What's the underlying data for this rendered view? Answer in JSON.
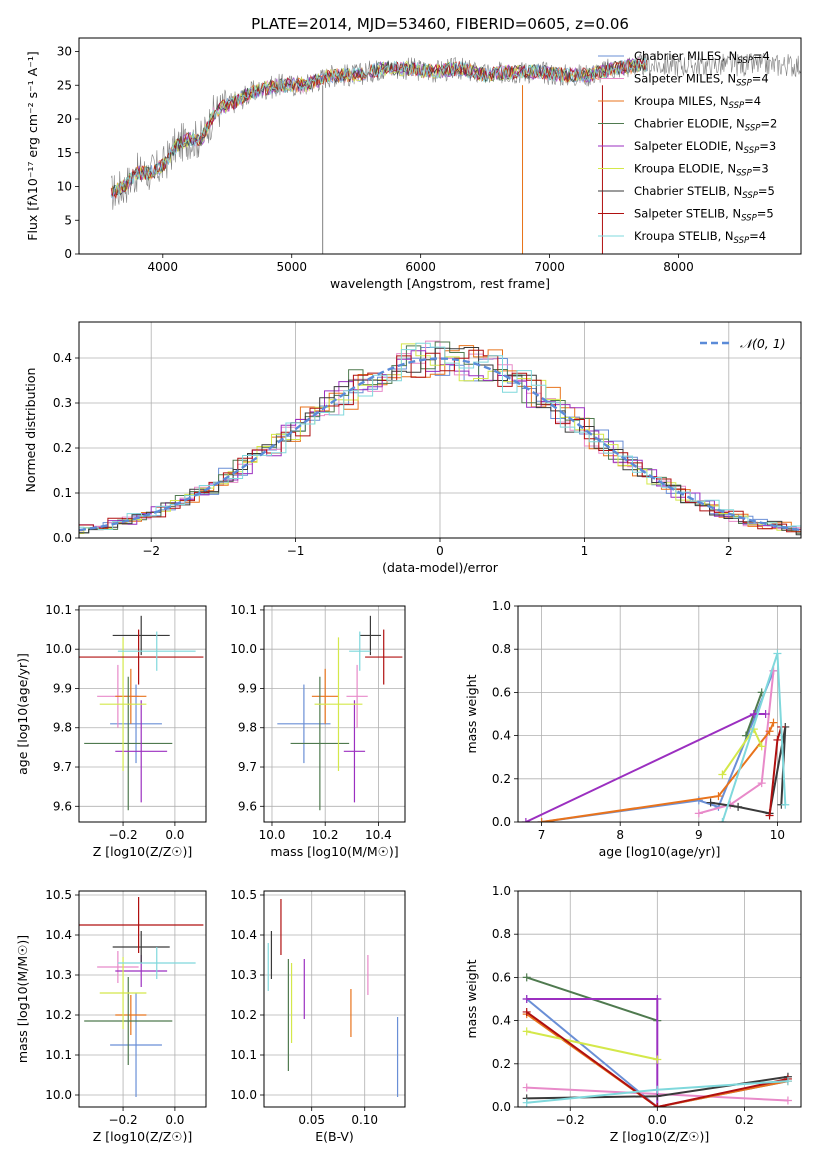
{
  "title": "PLATE=2014, MJD=53460, FIBERID=0605, z=0.06",
  "colors": {
    "Chabrier MILES": "#6a8fd6",
    "Salpeter MILES": "#e88ac9",
    "Kroupa MILES": "#e8731c",
    "Chabrier ELODIE": "#4f7a4f",
    "Salpeter ELODIE": "#9b2fc0",
    "Kroupa ELODIE": "#d4e84a",
    "Chabrier STELIB": "#3a3a3a",
    "Salpeter STELIB": "#b01010",
    "Kroupa STELIB": "#7fd8dc",
    "data": "#808080",
    "gaussian": "#5b8bd8"
  },
  "chart_data": [
    {
      "id": "spectrum",
      "type": "line",
      "xlabel": "wavelength [Angstrom, rest frame]",
      "ylabel": "Flux [fλ10⁻¹⁷ erg cm⁻² s⁻¹ A⁻¹]",
      "xlim": [
        3350,
        8950
      ],
      "ylim": [
        0,
        32
      ],
      "xticks": [
        4000,
        5000,
        6000,
        7000,
        8000
      ],
      "yticks": [
        0,
        5,
        10,
        15,
        20,
        25,
        30
      ],
      "legend_position": "top-right",
      "continuum": {
        "x": [
          3600,
          3700,
          3800,
          3900,
          4000,
          4100,
          4200,
          4300,
          4400,
          4500,
          4700,
          4900,
          5100,
          5300,
          5500,
          5700,
          5900,
          6100,
          6300,
          6500,
          6700,
          6900,
          7100,
          7300,
          7500,
          7700
        ],
        "y": [
          9,
          10,
          12,
          12,
          13,
          16,
          17,
          17,
          21,
          22,
          24,
          25,
          25,
          26.5,
          26.5,
          27.5,
          27.5,
          27,
          27.5,
          26.5,
          27,
          27,
          26.5,
          26.5,
          27.5,
          28
        ]
      },
      "series": [
        {
          "name": "Chabrier MILES, N_SSP=4"
        },
        {
          "name": "Salpeter MILES, N_SSP=4"
        },
        {
          "name": "Kroupa MILES, N_SSP=4"
        },
        {
          "name": "Chabrier ELODIE, N_SSP=2"
        },
        {
          "name": "Salpeter ELODIE, N_SSP=3"
        },
        {
          "name": "Kroupa ELODIE, N_SSP=3"
        },
        {
          "name": "Chabrier STELIB, N_SSP=5"
        },
        {
          "name": "Salpeter STELIB, N_SSP=5"
        },
        {
          "name": "Kroupa STELIB, N_SSP=4"
        }
      ],
      "legend_labels": [
        "Chabrier MILES, N",
        "Salpeter MILES, N",
        "Kroupa MILES, N",
        "Chabrier ELODIE, N",
        "Salpeter ELODIE, N",
        "Kroupa ELODIE, N",
        "Chabrier STELIB, N",
        "Salpeter STELIB, N",
        "Kroupa STELIB, N"
      ],
      "legend_sub": "SSP",
      "legend_values": [
        "=4",
        "=4",
        "=4",
        "=2",
        "=3",
        "=3",
        "=5",
        "=5",
        "=4"
      ]
    },
    {
      "id": "residuals",
      "type": "histogram",
      "xlabel": "(data-model)/error",
      "ylabel": "Normed distribution",
      "xlim": [
        -2.5,
        2.5
      ],
      "ylim": [
        0,
        0.48
      ],
      "xticks": [
        -2,
        -1,
        0,
        1,
        2
      ],
      "yticks": [
        0.0,
        0.1,
        0.2,
        0.3,
        0.4
      ],
      "grid": true,
      "legend": "𝒩(0, 1)",
      "legend_position": "top-right",
      "bin_width": 0.1
    },
    {
      "id": "age-vs-Z",
      "type": "errorbar",
      "xlabel": "Z [log10(Z/Z☉)]",
      "ylabel": "age  [log10(age/yr)]",
      "xlim": [
        -0.37,
        0.12
      ],
      "ylim": [
        9.56,
        10.11
      ],
      "xticks": [
        -0.2,
        0.0
      ],
      "yticks": [
        9.6,
        9.7,
        9.8,
        9.9,
        10.0,
        10.1
      ],
      "grid": true,
      "points": [
        {
          "model": "Chabrier MILES",
          "x": -0.15,
          "y": 9.81,
          "xerr": 0.1,
          "yerr": 0.1
        },
        {
          "model": "Salpeter MILES",
          "x": -0.22,
          "y": 9.88,
          "xerr": 0.08,
          "yerr": 0.08
        },
        {
          "model": "Kroupa MILES",
          "x": -0.17,
          "y": 9.88,
          "xerr": 0.06,
          "yerr": 0.07
        },
        {
          "model": "Chabrier ELODIE",
          "x": -0.18,
          "y": 9.76,
          "xerr": 0.17,
          "yerr": 0.17
        },
        {
          "model": "Salpeter ELODIE",
          "x": -0.13,
          "y": 9.74,
          "xerr": 0.1,
          "yerr": 0.13
        },
        {
          "model": "Kroupa ELODIE",
          "x": -0.2,
          "y": 9.86,
          "xerr": 0.09,
          "yerr": 0.17
        },
        {
          "model": "Chabrier STELIB",
          "x": -0.13,
          "y": 10.035,
          "xerr": 0.11,
          "yerr": 0.05
        },
        {
          "model": "Salpeter STELIB",
          "x": -0.14,
          "y": 9.98,
          "xerr": 0.25,
          "yerr": 0.07
        },
        {
          "model": "Kroupa STELIB",
          "x": -0.07,
          "y": 9.995,
          "xerr": 0.15,
          "yerr": 0.05
        }
      ]
    },
    {
      "id": "age-vs-mass",
      "type": "errorbar",
      "xlabel": "mass [log10(M/M☉)]",
      "ylabel": "",
      "xlim": [
        9.97,
        10.5
      ],
      "ylim": [
        9.56,
        10.11
      ],
      "xticks": [
        10.0,
        10.2,
        10.4
      ],
      "yticks": [
        9.6,
        9.7,
        9.8,
        9.9,
        10.0,
        10.1
      ],
      "grid": true,
      "points": [
        {
          "model": "Chabrier MILES",
          "x": 10.12,
          "y": 9.81,
          "xerr": 0.1,
          "yerr": 0.1
        },
        {
          "model": "Salpeter MILES",
          "x": 10.32,
          "y": 9.88,
          "xerr": 0.04,
          "yerr": 0.08
        },
        {
          "model": "Kroupa MILES",
          "x": 10.2,
          "y": 9.88,
          "xerr": 0.05,
          "yerr": 0.07
        },
        {
          "model": "Chabrier ELODIE",
          "x": 10.18,
          "y": 9.76,
          "xerr": 0.11,
          "yerr": 0.17
        },
        {
          "model": "Salpeter ELODIE",
          "x": 10.31,
          "y": 9.74,
          "xerr": 0.04,
          "yerr": 0.13
        },
        {
          "model": "Kroupa ELODIE",
          "x": 10.25,
          "y": 9.86,
          "xerr": 0.09,
          "yerr": 0.17
        },
        {
          "model": "Chabrier STELIB",
          "x": 10.37,
          "y": 10.035,
          "xerr": 0.04,
          "yerr": 0.05
        },
        {
          "model": "Salpeter STELIB",
          "x": 10.42,
          "y": 9.98,
          "xerr": 0.07,
          "yerr": 0.07
        },
        {
          "model": "Kroupa STELIB",
          "x": 10.33,
          "y": 9.995,
          "xerr": 0.04,
          "yerr": 0.05
        }
      ]
    },
    {
      "id": "mass-weight-vs-age",
      "type": "line",
      "xlabel": "age  [log10(age/yr)]",
      "ylabel": "mass weight",
      "xlim": [
        6.7,
        10.3
      ],
      "ylim": [
        0,
        1
      ],
      "xticks": [
        7,
        8,
        9,
        10
      ],
      "yticks": [
        0.0,
        0.2,
        0.4,
        0.6,
        0.8,
        1.0
      ],
      "grid": true,
      "series": [
        {
          "model": "Chabrier MILES",
          "x": [
            7.0,
            9.0,
            9.25,
            9.95
          ],
          "y": [
            0.0,
            0.1,
            0.07,
            0.7
          ]
        },
        {
          "model": "Salpeter MILES",
          "x": [
            9.0,
            9.4,
            9.8,
            9.95
          ],
          "y": [
            0.04,
            0.08,
            0.18,
            0.7
          ]
        },
        {
          "model": "Kroupa MILES",
          "x": [
            7.0,
            9.25,
            9.9,
            9.95
          ],
          "y": [
            0.0,
            0.12,
            0.42,
            0.46
          ]
        },
        {
          "model": "Chabrier ELODIE",
          "x": [
            9.6,
            9.8
          ],
          "y": [
            0.4,
            0.6
          ]
        },
        {
          "model": "Salpeter ELODIE",
          "x": [
            6.8,
            9.7,
            9.85
          ],
          "y": [
            0.0,
            0.5,
            0.5
          ]
        },
        {
          "model": "Kroupa ELODIE",
          "x": [
            9.3,
            9.7,
            9.8
          ],
          "y": [
            0.22,
            0.43,
            0.35
          ]
        },
        {
          "model": "Chabrier STELIB",
          "x": [
            9.15,
            9.5,
            9.9,
            10.1,
            10.05
          ],
          "y": [
            0.09,
            0.07,
            0.04,
            0.44,
            0.08
          ]
        },
        {
          "model": "Salpeter STELIB",
          "x": [
            9.9,
            10.0,
            10.05
          ],
          "y": [
            0.03,
            0.38,
            0.44
          ]
        },
        {
          "model": "Kroupa STELIB",
          "x": [
            9.3,
            10.0,
            10.1
          ],
          "y": [
            0.0,
            0.78,
            0.08
          ]
        }
      ]
    },
    {
      "id": "mass-vs-Z",
      "type": "errorbar",
      "xlabel": "Z [log10(Z/Z☉)]",
      "ylabel": "mass [log10(M/M☉)]",
      "xlim": [
        -0.37,
        0.12
      ],
      "ylim": [
        9.97,
        10.51
      ],
      "xticks": [
        -0.2,
        0.0
      ],
      "yticks": [
        10.0,
        10.1,
        10.2,
        10.3,
        10.4,
        10.5
      ],
      "grid": true,
      "points": [
        {
          "model": "Chabrier MILES",
          "x": -0.15,
          "y": 10.125,
          "xerr": 0.1,
          "yerr": 0.13
        },
        {
          "model": "Salpeter MILES",
          "x": -0.22,
          "y": 10.32,
          "xerr": 0.08,
          "yerr": 0.04
        },
        {
          "model": "Kroupa MILES",
          "x": -0.17,
          "y": 10.2,
          "xerr": 0.06,
          "yerr": 0.05
        },
        {
          "model": "Chabrier ELODIE",
          "x": -0.18,
          "y": 10.185,
          "xerr": 0.17,
          "yerr": 0.11
        },
        {
          "model": "Salpeter ELODIE",
          "x": -0.13,
          "y": 10.31,
          "xerr": 0.1,
          "yerr": 0.04
        },
        {
          "model": "Kroupa ELODIE",
          "x": -0.2,
          "y": 10.255,
          "xerr": 0.09,
          "yerr": 0.09
        },
        {
          "model": "Chabrier STELIB",
          "x": -0.13,
          "y": 10.37,
          "xerr": 0.11,
          "yerr": 0.04
        },
        {
          "model": "Salpeter STELIB",
          "x": -0.14,
          "y": 10.425,
          "xerr": 0.25,
          "yerr": 0.07
        },
        {
          "model": "Kroupa STELIB",
          "x": -0.07,
          "y": 10.33,
          "xerr": 0.15,
          "yerr": 0.04
        }
      ]
    },
    {
      "id": "mass-vs-EBV",
      "type": "errorbar",
      "xlabel": "E(B-V)",
      "ylabel": "",
      "xlim": [
        0.005,
        0.138
      ],
      "ylim": [
        9.97,
        10.51
      ],
      "xticks": [
        0.05,
        0.1
      ],
      "yticks": [
        10.0,
        10.1,
        10.2,
        10.3,
        10.4,
        10.5
      ],
      "grid": true,
      "points": [
        {
          "model": "Chabrier MILES",
          "x": 0.131,
          "y": 10.095,
          "yerr": 0.1
        },
        {
          "model": "Salpeter MILES",
          "x": 0.103,
          "y": 10.3,
          "yerr": 0.05
        },
        {
          "model": "Kroupa MILES",
          "x": 0.087,
          "y": 10.205,
          "yerr": 0.06
        },
        {
          "model": "Chabrier ELODIE",
          "x": 0.028,
          "y": 10.2,
          "yerr": 0.14
        },
        {
          "model": "Salpeter ELODIE",
          "x": 0.043,
          "y": 10.265,
          "yerr": 0.075
        },
        {
          "model": "Kroupa ELODIE",
          "x": 0.031,
          "y": 10.23,
          "yerr": 0.1
        },
        {
          "model": "Chabrier STELIB",
          "x": 0.012,
          "y": 10.35,
          "yerr": 0.06
        },
        {
          "model": "Salpeter STELIB",
          "x": 0.021,
          "y": 10.42,
          "yerr": 0.07
        },
        {
          "model": "Kroupa STELIB",
          "x": 0.009,
          "y": 10.32,
          "yerr": 0.06
        }
      ]
    },
    {
      "id": "mass-weight-vs-Z",
      "type": "line",
      "xlabel": "Z [log10(Z/Z☉)]",
      "ylabel": "mass weight",
      "xlim": [
        -0.32,
        0.33
      ],
      "ylim": [
        0,
        1
      ],
      "xticks": [
        -0.2,
        0.0,
        0.2
      ],
      "yticks": [
        0.0,
        0.2,
        0.4,
        0.6,
        0.8,
        1.0
      ],
      "grid": true,
      "series": [
        {
          "model": "Chabrier MILES",
          "x": [
            -0.3,
            0.0,
            0.3
          ],
          "y": [
            0.5,
            0.0,
            0.12
          ]
        },
        {
          "model": "Salpeter MILES",
          "x": [
            -0.3,
            0.0,
            0.3
          ],
          "y": [
            0.09,
            0.06,
            0.03
          ]
        },
        {
          "model": "Kroupa MILES",
          "x": [
            -0.3,
            0.0,
            0.3
          ],
          "y": [
            0.43,
            0.0,
            0.12
          ]
        },
        {
          "model": "Chabrier ELODIE",
          "x": [
            -0.3,
            0.0
          ],
          "y": [
            0.6,
            0.4
          ]
        },
        {
          "model": "Salpeter ELODIE",
          "x": [
            -0.3,
            0.0,
            0.0
          ],
          "y": [
            0.5,
            0.5,
            0.0
          ]
        },
        {
          "model": "Kroupa ELODIE",
          "x": [
            -0.3,
            0.0
          ],
          "y": [
            0.35,
            0.22
          ]
        },
        {
          "model": "Chabrier STELIB",
          "x": [
            -0.3,
            0.0,
            0.3
          ],
          "y": [
            0.04,
            0.05,
            0.14
          ]
        },
        {
          "model": "Salpeter STELIB",
          "x": [
            -0.3,
            0.0,
            0.3
          ],
          "y": [
            0.44,
            0.0,
            0.13
          ]
        },
        {
          "model": "Kroupa STELIB",
          "x": [
            -0.3,
            0.0,
            0.3
          ],
          "y": [
            0.02,
            0.08,
            0.12
          ]
        }
      ]
    }
  ]
}
